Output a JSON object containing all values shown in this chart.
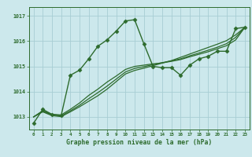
{
  "title": "Graphe pression niveau de la mer (hPa)",
  "bg_color": "#cce8ec",
  "grid_color": "#a8cdd4",
  "line_color": "#2d6b2d",
  "xlim": [
    -0.5,
    23.5
  ],
  "ylim": [
    1012.5,
    1017.35
  ],
  "yticks": [
    1013,
    1014,
    1015,
    1016,
    1017
  ],
  "xticks": [
    0,
    1,
    2,
    3,
    4,
    5,
    6,
    7,
    8,
    9,
    10,
    11,
    12,
    13,
    14,
    15,
    16,
    17,
    18,
    19,
    20,
    21,
    22,
    23
  ],
  "series": [
    {
      "x": [
        0,
        1,
        2,
        3,
        4,
        5,
        6,
        7,
        8,
        9,
        10,
        11,
        12,
        13,
        14,
        15,
        16,
        17,
        18,
        19,
        20,
        21,
        22,
        23
      ],
      "y": [
        1012.75,
        1013.3,
        1013.1,
        1013.05,
        1014.65,
        1014.85,
        1015.3,
        1015.8,
        1016.05,
        1016.4,
        1016.8,
        1016.85,
        1015.9,
        1015.0,
        1014.95,
        1014.95,
        1014.65,
        1015.05,
        1015.3,
        1015.4,
        1015.6,
        1015.6,
        1016.5,
        1016.55
      ],
      "marker": "D",
      "ms": 2.5,
      "lw": 1.0
    },
    {
      "x": [
        0,
        1,
        2,
        3,
        4,
        5,
        6,
        7,
        8,
        9,
        10,
        11,
        12,
        13,
        14,
        15,
        16,
        17,
        18,
        19,
        20,
        21,
        22,
        23
      ],
      "y": [
        1013.0,
        1013.25,
        1013.1,
        1013.08,
        1013.3,
        1013.55,
        1013.85,
        1014.1,
        1014.38,
        1014.62,
        1014.88,
        1015.0,
        1015.05,
        1015.1,
        1015.14,
        1015.2,
        1015.27,
        1015.38,
        1015.48,
        1015.58,
        1015.7,
        1015.82,
        1016.05,
        1016.55
      ],
      "marker": null,
      "ms": 0,
      "lw": 0.9
    },
    {
      "x": [
        0,
        1,
        2,
        3,
        4,
        5,
        6,
        7,
        8,
        9,
        10,
        11,
        12,
        13,
        14,
        15,
        16,
        17,
        18,
        19,
        20,
        21,
        22,
        23
      ],
      "y": [
        1013.0,
        1013.22,
        1013.08,
        1013.04,
        1013.24,
        1013.46,
        1013.72,
        1013.96,
        1014.22,
        1014.5,
        1014.78,
        1014.92,
        1014.99,
        1015.07,
        1015.15,
        1015.22,
        1015.3,
        1015.42,
        1015.53,
        1015.64,
        1015.76,
        1015.9,
        1016.15,
        1016.55
      ],
      "marker": null,
      "ms": 0,
      "lw": 0.9
    },
    {
      "x": [
        0,
        1,
        2,
        3,
        4,
        5,
        6,
        7,
        8,
        9,
        10,
        11,
        12,
        13,
        14,
        15,
        16,
        17,
        18,
        19,
        20,
        21,
        22,
        23
      ],
      "y": [
        1013.0,
        1013.2,
        1013.05,
        1013.01,
        1013.2,
        1013.4,
        1013.62,
        1013.84,
        1014.1,
        1014.4,
        1014.7,
        1014.84,
        1014.93,
        1015.03,
        1015.13,
        1015.23,
        1015.36,
        1015.49,
        1015.62,
        1015.75,
        1015.88,
        1016.02,
        1016.25,
        1016.55
      ],
      "marker": null,
      "ms": 0,
      "lw": 0.9
    }
  ]
}
